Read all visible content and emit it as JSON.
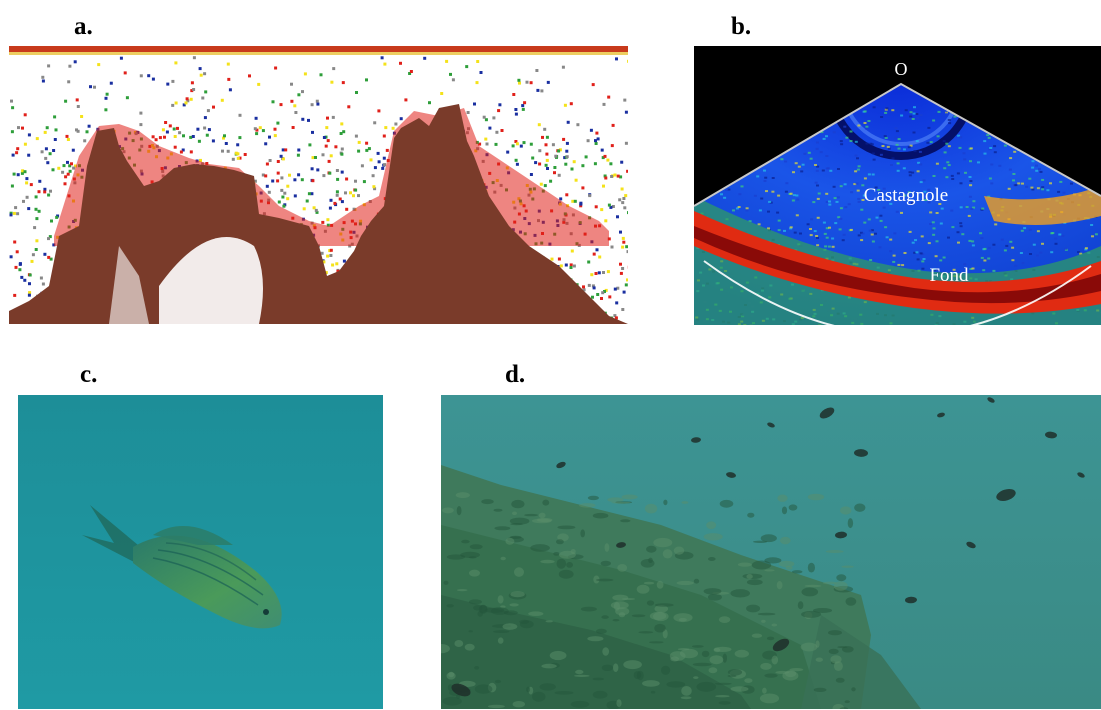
{
  "figure": {
    "panels": [
      {
        "id": "a",
        "label": "a.",
        "kind": "echogram"
      },
      {
        "id": "b",
        "label": "b.",
        "kind": "sonar-fan",
        "annotations": {
          "top_marker": "O",
          "school": "Castagnole",
          "bottom": "Fond"
        }
      },
      {
        "id": "c",
        "label": "c.",
        "kind": "underwater-photo-single-fish"
      },
      {
        "id": "d",
        "label": "d.",
        "kind": "underwater-photo-fish-school"
      }
    ]
  },
  "colors": {
    "echo_bottom": "#7a3b2a",
    "echo_red": "#e0201a",
    "echo_yellow": "#f4e21a",
    "echo_green": "#2e9e3a",
    "echo_blue": "#1a2fa0",
    "sonar_bg": "#0d2fc8",
    "water_c": "#1f9aa2",
    "water_d": "#3f8c8a"
  }
}
